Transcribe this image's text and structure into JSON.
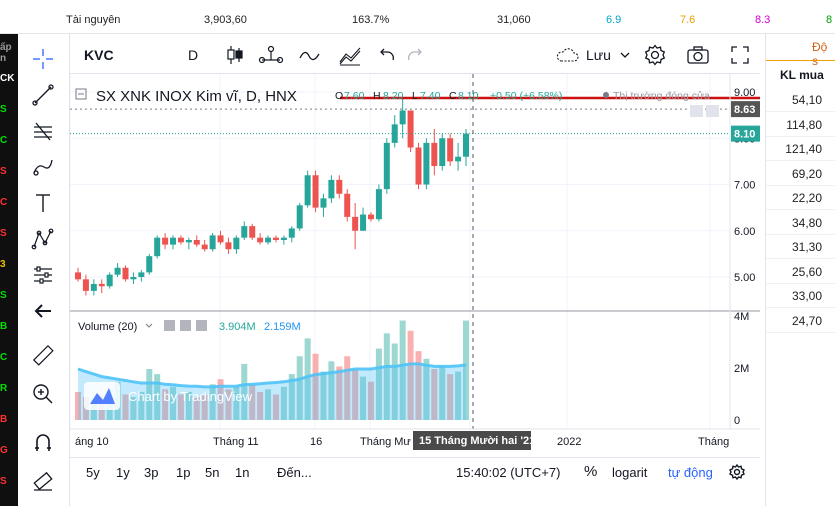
{
  "top_row": {
    "label": "Tài nguyên",
    "cells": [
      "3,903,60",
      "163.7%",
      "31,060"
    ],
    "colored": [
      {
        "text": "6.9",
        "color": "#00a8c6"
      },
      {
        "text": "7.6",
        "color": "#f0a000"
      },
      {
        "text": "8.3",
        "color": "#d400d4"
      },
      {
        "text": "8",
        "color": "#00a000"
      }
    ]
  },
  "left_strip": {
    "items": [
      {
        "text": "ấp n",
        "color": "#999999"
      },
      {
        "text": "CK",
        "color": "#ffffff"
      },
      {
        "text": "S",
        "color": "#00e000"
      },
      {
        "text": "C",
        "color": "#00e000"
      },
      {
        "text": "S",
        "color": "#ff3030"
      },
      {
        "text": "C",
        "color": "#ff3030"
      },
      {
        "text": "S",
        "color": "#ff3030"
      },
      {
        "text": "3",
        "color": "#f0c000"
      },
      {
        "text": "S",
        "color": "#00e000"
      },
      {
        "text": "B",
        "color": "#00e000"
      },
      {
        "text": "C",
        "color": "#00e000"
      },
      {
        "text": "R",
        "color": "#00e000"
      },
      {
        "text": "B",
        "color": "#ff3030"
      },
      {
        "text": "G",
        "color": "#ff3030"
      },
      {
        "text": "S",
        "color": "#ff3030"
      }
    ]
  },
  "header": {
    "symbol": "KVC",
    "interval": "D",
    "save_label": "Lưu"
  },
  "legend": {
    "title": "SX XNK INOX Kim vĩ, D, HNX",
    "o_label": "O",
    "o_value": "7.60",
    "h_label": "H",
    "h_value": "8.20",
    "l_label": "L",
    "l_value": "7.40",
    "c_label": "C",
    "c_value": "8.10",
    "change": "+0.50 (+6.58%)",
    "market_status": "Thị trường đóng cửa"
  },
  "volume_legend": {
    "title": "Volume (20)",
    "value1": "3.904M",
    "value2": "2.159M"
  },
  "watermark": "Chart by TradingView",
  "price_axis": {
    "ticks": [
      "9.00",
      "8.00",
      "7.00",
      "6.00",
      "5.00"
    ],
    "badge_top": "8.63",
    "badge_last": "8.10",
    "volume_ticks": [
      "4M",
      "2M",
      "0"
    ]
  },
  "time_axis": {
    "labels": [
      "áng 10",
      "Tháng 11",
      "16",
      "Tháng Mư",
      "2022",
      "Tháng"
    ],
    "crosshair_label": "15 Tháng Mười hai '21"
  },
  "bottom_bar": {
    "ranges": [
      "5y",
      "1y",
      "3p",
      "1p",
      "5n",
      "1n"
    ],
    "goto": "Đến...",
    "time": "15:40:02 (UTC+7)",
    "percent": "%",
    "log": "logarit",
    "auto": "tự động"
  },
  "right_panel": {
    "header_top": "Độ s",
    "header": "KL mua",
    "values": [
      "54,10",
      "114,80",
      "121,40",
      "69,20",
      "22,20",
      "34,80",
      "31,30",
      "25,60",
      "33,00",
      "24,70"
    ]
  },
  "colors": {
    "up": "#26a69a",
    "down": "#ef5350",
    "accent": "#2962ff",
    "volume_ma": "#4fc3f7"
  },
  "chart_data": {
    "type": "candlestick",
    "title": "SX XNK INOX Kim vĩ, D, HNX",
    "ylim": [
      4.4,
      9.4
    ],
    "candles": [
      {
        "o": 5.1,
        "h": 5.2,
        "l": 4.9,
        "c": 4.95
      },
      {
        "o": 4.95,
        "h": 5.05,
        "l": 4.6,
        "c": 4.7
      },
      {
        "o": 4.7,
        "h": 4.95,
        "l": 4.6,
        "c": 4.85
      },
      {
        "o": 4.85,
        "h": 4.95,
        "l": 4.65,
        "c": 4.8
      },
      {
        "o": 4.8,
        "h": 5.1,
        "l": 4.75,
        "c": 5.05
      },
      {
        "o": 5.05,
        "h": 5.3,
        "l": 5.0,
        "c": 5.2
      },
      {
        "o": 5.2,
        "h": 5.25,
        "l": 4.9,
        "c": 4.95
      },
      {
        "o": 4.95,
        "h": 5.1,
        "l": 4.85,
        "c": 5.0
      },
      {
        "o": 5.0,
        "h": 5.15,
        "l": 4.9,
        "c": 5.1
      },
      {
        "o": 5.1,
        "h": 5.5,
        "l": 5.05,
        "c": 5.45
      },
      {
        "o": 5.45,
        "h": 5.9,
        "l": 5.4,
        "c": 5.85
      },
      {
        "o": 5.85,
        "h": 5.95,
        "l": 5.6,
        "c": 5.7
      },
      {
        "o": 5.7,
        "h": 5.9,
        "l": 5.6,
        "c": 5.85
      },
      {
        "o": 5.85,
        "h": 5.9,
        "l": 5.7,
        "c": 5.75
      },
      {
        "o": 5.75,
        "h": 5.85,
        "l": 5.6,
        "c": 5.8
      },
      {
        "o": 5.8,
        "h": 5.9,
        "l": 5.65,
        "c": 5.7
      },
      {
        "o": 5.7,
        "h": 5.8,
        "l": 5.55,
        "c": 5.6
      },
      {
        "o": 5.6,
        "h": 5.95,
        "l": 5.55,
        "c": 5.9
      },
      {
        "o": 5.9,
        "h": 6.0,
        "l": 5.7,
        "c": 5.75
      },
      {
        "o": 5.75,
        "h": 5.85,
        "l": 5.5,
        "c": 5.6
      },
      {
        "o": 5.6,
        "h": 5.9,
        "l": 5.5,
        "c": 5.85
      },
      {
        "o": 5.85,
        "h": 6.2,
        "l": 5.8,
        "c": 6.1
      },
      {
        "o": 6.1,
        "h": 6.15,
        "l": 5.8,
        "c": 5.85
      },
      {
        "o": 5.85,
        "h": 5.95,
        "l": 5.7,
        "c": 5.75
      },
      {
        "o": 5.75,
        "h": 5.9,
        "l": 5.7,
        "c": 5.85
      },
      {
        "o": 5.85,
        "h": 5.9,
        "l": 5.75,
        "c": 5.8
      },
      {
        "o": 5.8,
        "h": 5.9,
        "l": 5.7,
        "c": 5.85
      },
      {
        "o": 5.85,
        "h": 6.1,
        "l": 5.75,
        "c": 6.05
      },
      {
        "o": 6.05,
        "h": 6.6,
        "l": 6.0,
        "c": 6.55
      },
      {
        "o": 6.55,
        "h": 7.3,
        "l": 6.5,
        "c": 7.2
      },
      {
        "o": 7.2,
        "h": 7.3,
        "l": 6.4,
        "c": 6.5
      },
      {
        "o": 6.5,
        "h": 6.8,
        "l": 6.3,
        "c": 6.7
      },
      {
        "o": 6.7,
        "h": 7.2,
        "l": 6.6,
        "c": 7.1
      },
      {
        "o": 7.1,
        "h": 7.2,
        "l": 6.7,
        "c": 6.8
      },
      {
        "o": 6.8,
        "h": 6.9,
        "l": 6.2,
        "c": 6.3
      },
      {
        "o": 6.3,
        "h": 6.6,
        "l": 5.6,
        "c": 6.0
      },
      {
        "o": 6.0,
        "h": 6.5,
        "l": 6.0,
        "c": 6.35
      },
      {
        "o": 6.35,
        "h": 6.4,
        "l": 6.2,
        "c": 6.25
      },
      {
        "o": 6.25,
        "h": 7.0,
        "l": 6.2,
        "c": 6.9
      },
      {
        "o": 6.9,
        "h": 8.0,
        "l": 6.8,
        "c": 7.9
      },
      {
        "o": 7.9,
        "h": 8.5,
        "l": 7.8,
        "c": 8.3
      },
      {
        "o": 8.3,
        "h": 8.9,
        "l": 8.0,
        "c": 8.6
      },
      {
        "o": 8.6,
        "h": 8.6,
        "l": 7.7,
        "c": 7.8
      },
      {
        "o": 7.8,
        "h": 7.9,
        "l": 6.9,
        "c": 7.0
      },
      {
        "o": 7.0,
        "h": 8.0,
        "l": 6.9,
        "c": 7.9
      },
      {
        "o": 7.9,
        "h": 8.2,
        "l": 7.2,
        "c": 7.4
      },
      {
        "o": 7.4,
        "h": 8.1,
        "l": 7.3,
        "c": 8.0
      },
      {
        "o": 8.0,
        "h": 8.1,
        "l": 7.4,
        "c": 7.5
      },
      {
        "o": 7.5,
        "h": 7.9,
        "l": 7.3,
        "c": 7.6
      },
      {
        "o": 7.6,
        "h": 8.2,
        "l": 7.4,
        "c": 8.1
      }
    ],
    "volume_max": 4,
    "volume": [
      1.1,
      0.9,
      0.8,
      1.0,
      1.2,
      1.5,
      1.0,
      0.9,
      1.1,
      2.0,
      1.8,
      1.2,
      1.3,
      1.0,
      1.1,
      0.9,
      1.0,
      1.4,
      1.6,
      1.2,
      1.3,
      2.2,
      1.4,
      1.1,
      1.2,
      1.0,
      1.3,
      1.8,
      2.5,
      3.2,
      2.6,
      1.9,
      2.3,
      2.1,
      2.5,
      2.0,
      1.7,
      1.5,
      2.8,
      3.4,
      3.0,
      3.9,
      3.5,
      2.7,
      2.4,
      2.0,
      2.1,
      1.8,
      1.9,
      3.9
    ],
    "volume_ma": [
      2.0,
      1.9,
      1.8,
      1.7,
      1.65,
      1.6,
      1.55,
      1.5,
      1.45,
      1.45,
      1.45,
      1.4,
      1.38,
      1.35,
      1.33,
      1.32,
      1.3,
      1.3,
      1.32,
      1.32,
      1.33,
      1.38,
      1.4,
      1.42,
      1.45,
      1.47,
      1.5,
      1.55,
      1.6,
      1.7,
      1.78,
      1.82,
      1.86,
      1.9,
      1.95,
      2.0,
      2.0,
      2.0,
      2.05,
      2.1,
      2.1,
      2.15,
      2.2,
      2.2,
      2.15,
      2.1,
      2.1,
      2.1,
      2.12,
      2.16
    ]
  }
}
